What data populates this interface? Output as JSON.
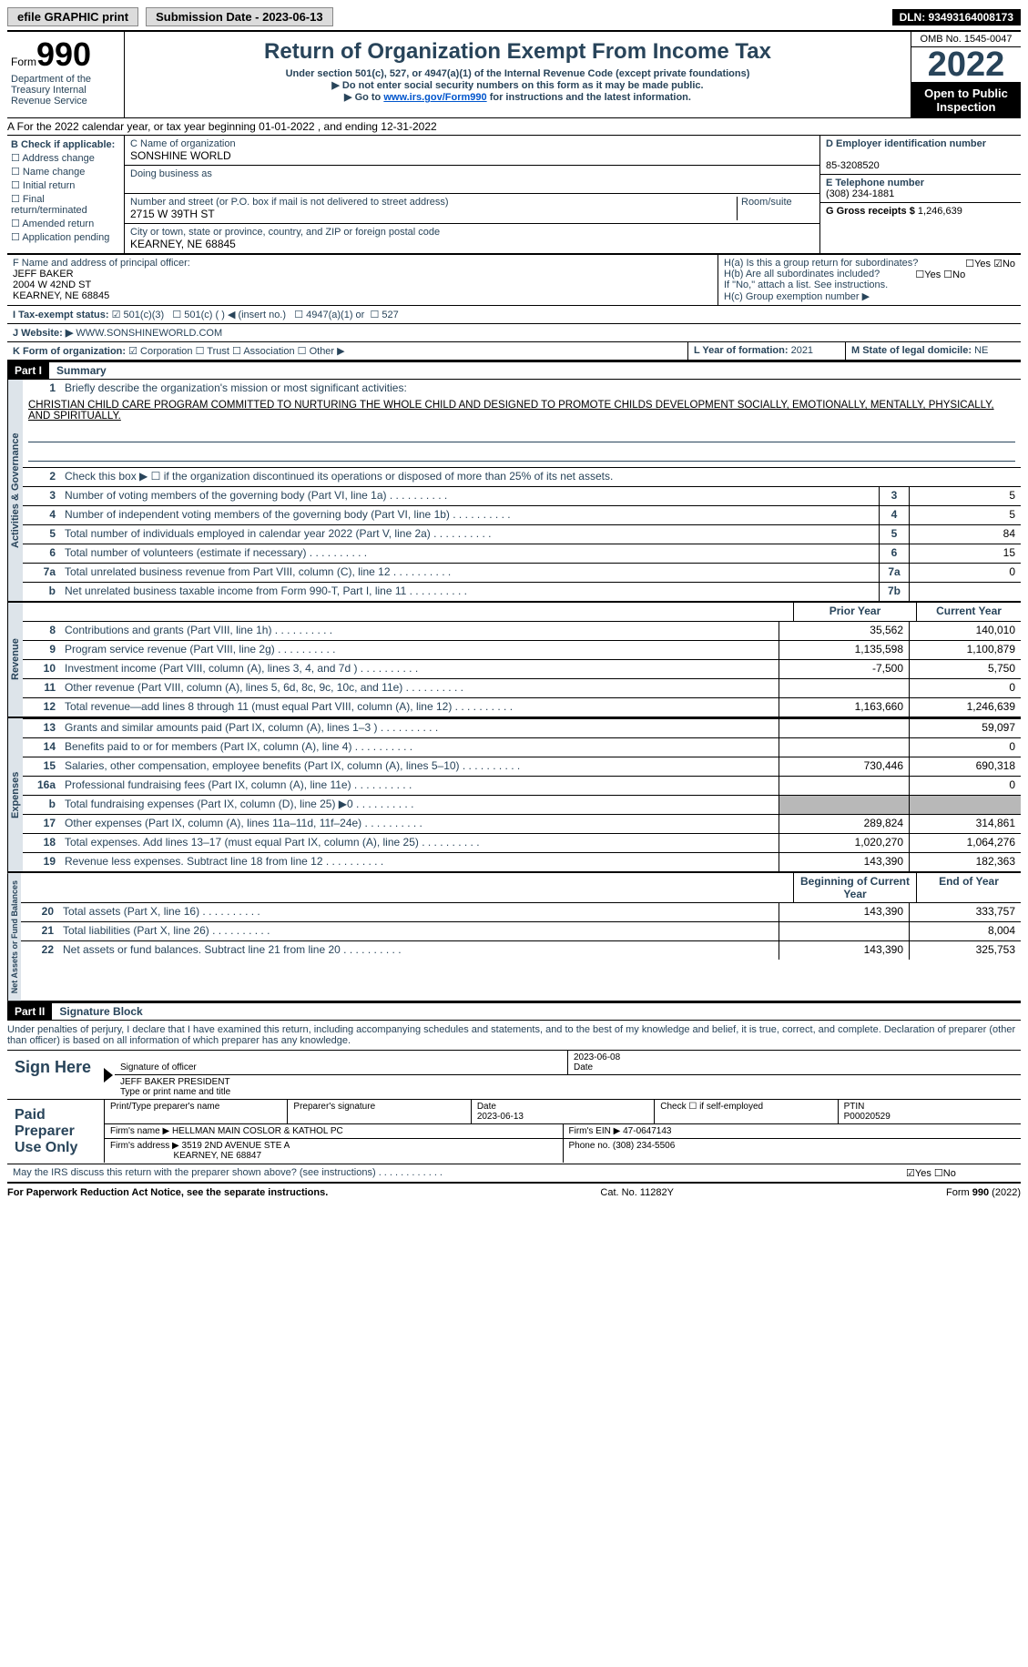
{
  "topbar": {
    "efile": "efile GRAPHIC print",
    "submission_label": "Submission Date - 2023-06-13",
    "dln": "DLN: 93493164008173"
  },
  "header": {
    "form_word": "Form",
    "form_number": "990",
    "dept": "Department of the Treasury Internal Revenue Service",
    "title": "Return of Organization Exempt From Income Tax",
    "subtitle": "Under section 501(c), 527, or 4947(a)(1) of the Internal Revenue Code (except private foundations)",
    "note1": "▶ Do not enter social security numbers on this form as it may be made public.",
    "note2_pre": "▶ Go to ",
    "note2_link": "www.irs.gov/Form990",
    "note2_post": " for instructions and the latest information.",
    "omb": "OMB No. 1545-0047",
    "year": "2022",
    "open": "Open to Public Inspection"
  },
  "rowA": "A For the 2022 calendar year, or tax year beginning 01-01-2022   , and ending 12-31-2022",
  "B": {
    "label": "B Check if applicable:",
    "opts": [
      "Address change",
      "Name change",
      "Initial return",
      "Final return/terminated",
      "Amended return",
      "Application pending"
    ]
  },
  "C": {
    "label_name": "C Name of organization",
    "name": "SONSHINE WORLD",
    "dba_label": "Doing business as",
    "addr_label": "Number and street (or P.O. box if mail is not delivered to street address)",
    "addr": "2715 W 39TH ST",
    "room_label": "Room/suite",
    "city_label": "City or town, state or province, country, and ZIP or foreign postal code",
    "city": "KEARNEY, NE  68845"
  },
  "D": {
    "label": "D Employer identification number",
    "val": "85-3208520"
  },
  "E": {
    "label": "E Telephone number",
    "val": "(308) 234-1881"
  },
  "G": {
    "label": "G Gross receipts $",
    "val": "1,246,639"
  },
  "F": {
    "label": "F  Name and address of principal officer:",
    "name": "JEFF BAKER",
    "addr1": "2004 W 42ND ST",
    "addr2": "KEARNEY, NE  68845"
  },
  "H": {
    "a": "H(a)  Is this a group return for subordinates?",
    "a_yes": "Yes",
    "a_no": "No",
    "b": "H(b)  Are all subordinates included?",
    "b_note": "If \"No,\" attach a list. See instructions.",
    "c": "H(c)  Group exemption number ▶"
  },
  "I": {
    "label": "I    Tax-exempt status:",
    "o1": "501(c)(3)",
    "o2": "501(c) (  ) ◀ (insert no.)",
    "o3": "4947(a)(1) or",
    "o4": "527"
  },
  "J": {
    "label": "J   Website: ▶",
    "val": "WWW.SONSHINEWORLD.COM"
  },
  "K": {
    "label": "K Form of organization:",
    "o1": "Corporation",
    "o2": "Trust",
    "o3": "Association",
    "o4": "Other ▶"
  },
  "L": {
    "label": "L Year of formation:",
    "val": "2021"
  },
  "M": {
    "label": "M State of legal domicile:",
    "val": "NE"
  },
  "part1": {
    "header": "Part I",
    "title": "Summary",
    "vert1": "Activities & Governance",
    "vert2": "Revenue",
    "vert3": "Expenses",
    "vert4": "Net Assets or Fund Balances",
    "line1_label": "Briefly describe the organization's mission or most significant activities:",
    "mission": "CHRISTIAN CHILD CARE PROGRAM COMMITTED TO NURTURING THE WHOLE CHILD AND DESIGNED TO PROMOTE CHILDS DEVELOPMENT SOCIALLY, EMOTIONALLY, MENTALLY, PHYSICALLY, AND SPIRITUALLY.",
    "line2": "Check this box ▶ ☐ if the organization discontinued its operations or disposed of more than 25% of its net assets.",
    "prior_header": "Prior Year",
    "current_header": "Current Year",
    "beg_header": "Beginning of Current Year",
    "end_header": "End of Year",
    "rows_gov": [
      {
        "n": "3",
        "t": "Number of voting members of the governing body (Part VI, line 1a)",
        "box": "3",
        "v": "5"
      },
      {
        "n": "4",
        "t": "Number of independent voting members of the governing body (Part VI, line 1b)",
        "box": "4",
        "v": "5"
      },
      {
        "n": "5",
        "t": "Total number of individuals employed in calendar year 2022 (Part V, line 2a)",
        "box": "5",
        "v": "84"
      },
      {
        "n": "6",
        "t": "Total number of volunteers (estimate if necessary)",
        "box": "6",
        "v": "15"
      },
      {
        "n": "7a",
        "t": "Total unrelated business revenue from Part VIII, column (C), line 12",
        "box": "7a",
        "v": "0"
      },
      {
        "n": "b",
        "t": "Net unrelated business taxable income from Form 990-T, Part I, line 11",
        "box": "7b",
        "v": ""
      }
    ],
    "rows_rev": [
      {
        "n": "8",
        "t": "Contributions and grants (Part VIII, line 1h)",
        "p": "35,562",
        "c": "140,010"
      },
      {
        "n": "9",
        "t": "Program service revenue (Part VIII, line 2g)",
        "p": "1,135,598",
        "c": "1,100,879"
      },
      {
        "n": "10",
        "t": "Investment income (Part VIII, column (A), lines 3, 4, and 7d )",
        "p": "-7,500",
        "c": "5,750"
      },
      {
        "n": "11",
        "t": "Other revenue (Part VIII, column (A), lines 5, 6d, 8c, 9c, 10c, and 11e)",
        "p": "",
        "c": "0"
      },
      {
        "n": "12",
        "t": "Total revenue—add lines 8 through 11 (must equal Part VIII, column (A), line 12)",
        "p": "1,163,660",
        "c": "1,246,639"
      }
    ],
    "rows_exp": [
      {
        "n": "13",
        "t": "Grants and similar amounts paid (Part IX, column (A), lines 1–3 )",
        "p": "",
        "c": "59,097"
      },
      {
        "n": "14",
        "t": "Benefits paid to or for members (Part IX, column (A), line 4)",
        "p": "",
        "c": "0"
      },
      {
        "n": "15",
        "t": "Salaries, other compensation, employee benefits (Part IX, column (A), lines 5–10)",
        "p": "730,446",
        "c": "690,318"
      },
      {
        "n": "16a",
        "t": "Professional fundraising fees (Part IX, column (A), line 11e)",
        "p": "",
        "c": "0"
      },
      {
        "n": "b",
        "t": "Total fundraising expenses (Part IX, column (D), line 25) ▶0",
        "p": "grey",
        "c": "grey"
      },
      {
        "n": "17",
        "t": "Other expenses (Part IX, column (A), lines 11a–11d, 11f–24e)",
        "p": "289,824",
        "c": "314,861"
      },
      {
        "n": "18",
        "t": "Total expenses. Add lines 13–17 (must equal Part IX, column (A), line 25)",
        "p": "1,020,270",
        "c": "1,064,276"
      },
      {
        "n": "19",
        "t": "Revenue less expenses. Subtract line 18 from line 12",
        "p": "143,390",
        "c": "182,363"
      }
    ],
    "rows_net": [
      {
        "n": "20",
        "t": "Total assets (Part X, line 16)",
        "p": "143,390",
        "c": "333,757"
      },
      {
        "n": "21",
        "t": "Total liabilities (Part X, line 26)",
        "p": "",
        "c": "8,004"
      },
      {
        "n": "22",
        "t": "Net assets or fund balances. Subtract line 21 from line 20",
        "p": "143,390",
        "c": "325,753"
      }
    ]
  },
  "part2": {
    "header": "Part II",
    "title": "Signature Block",
    "decl": "Under penalties of perjury, I declare that I have examined this return, including accompanying schedules and statements, and to the best of my knowledge and belief, it is true, correct, and complete. Declaration of preparer (other than officer) is based on all information of which preparer has any knowledge.",
    "sign_here": "Sign Here",
    "sig_officer": "Signature of officer",
    "sig_date": "2023-06-08",
    "date_label": "Date",
    "officer_name": "JEFF BAKER  PRESIDENT",
    "officer_type": "Type or print name and title",
    "paid": "Paid Preparer Use Only",
    "prep_name_label": "Print/Type preparer's name",
    "prep_sig_label": "Preparer's signature",
    "prep_date_label": "Date",
    "prep_date": "2023-06-13",
    "check_self": "Check ☐ if self-employed",
    "ptin_label": "PTIN",
    "ptin": "P00020529",
    "firm_name_label": "Firm's name    ▶",
    "firm_name": "HELLMAN MAIN COSLOR & KATHOL PC",
    "firm_ein_label": "Firm's EIN ▶",
    "firm_ein": "47-0647143",
    "firm_addr_label": "Firm's address ▶",
    "firm_addr1": "3519 2ND AVENUE STE A",
    "firm_addr2": "KEARNEY, NE  68847",
    "phone_label": "Phone no.",
    "phone": "(308) 234-5506",
    "discuss": "May the IRS discuss this return with the preparer shown above? (see instructions)",
    "yes": "Yes",
    "no": "No"
  },
  "footer": {
    "left": "For Paperwork Reduction Act Notice, see the separate instructions.",
    "mid": "Cat. No. 11282Y",
    "right": "Form 990 (2022)"
  }
}
